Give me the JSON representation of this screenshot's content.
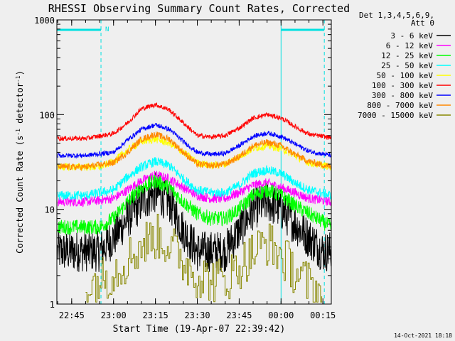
{
  "chart_data": {
    "type": "line",
    "title": "RHESSI Observing Summary Count Rates, Corrected",
    "xlabel": "Start Time (19-Apr-07 22:39:42)",
    "ylabel": "Corrected Count Rate (s⁻¹ detector⁻¹)",
    "y_scale": "log",
    "ylim": [
      1,
      1000
    ],
    "xlim": [
      "22:39:42",
      "00:18:00"
    ],
    "x_ticks": [
      "22:45",
      "23:00",
      "23:15",
      "23:30",
      "23:45",
      "00:00",
      "00:15"
    ],
    "y_ticks": [
      "1",
      "10",
      "100",
      "1000"
    ],
    "legend_header": [
      "Det 1,3,4,5,6,9,",
      "Att 0"
    ],
    "legend_position": "right",
    "footer_date": "14-Oct-2021 18:18",
    "markers": {
      "night_label": "N",
      "night_intervals": [
        [
          "22:39:42",
          "22:55:30"
        ],
        [
          "00:00:00",
          "00:15:30"
        ]
      ],
      "vertical_lines": [
        "22:55:30",
        "00:00:00",
        "00:15:30"
      ]
    },
    "series": [
      {
        "name": "3 - 6 keV",
        "color": "#000000",
        "x": [
          "22:40",
          "22:55",
          "23:00",
          "23:05",
          "23:10",
          "23:15",
          "23:20",
          "23:25",
          "23:30",
          "23:35",
          "23:40",
          "23:45",
          "23:50",
          "23:55",
          "00:00",
          "00:05",
          "00:10",
          "00:15",
          "00:18"
        ],
        "y": [
          3.6,
          3.6,
          5,
          8,
          12,
          15,
          12,
          6,
          3.6,
          3.6,
          3.6,
          6,
          10,
          12,
          10,
          7,
          5,
          3.6,
          3.6
        ]
      },
      {
        "name": "6 - 12 keV",
        "color": "#ff00ff",
        "x": [
          "22:40",
          "22:50",
          "23:00",
          "23:05",
          "23:10",
          "23:15",
          "23:20",
          "23:25",
          "23:30",
          "23:35",
          "23:40",
          "23:45",
          "23:50",
          "23:55",
          "00:00",
          "00:05",
          "00:10",
          "00:18"
        ],
        "y": [
          12,
          12,
          13,
          16,
          20,
          23,
          21,
          17,
          14,
          13,
          13,
          15,
          18,
          19,
          17,
          15,
          13,
          12
        ]
      },
      {
        "name": "12 - 25 keV",
        "color": "#00ff00",
        "x": [
          "22:40",
          "22:55",
          "23:00",
          "23:05",
          "23:10",
          "23:15",
          "23:20",
          "23:25",
          "23:30",
          "23:35",
          "23:40",
          "23:45",
          "23:50",
          "23:55",
          "00:00",
          "00:05",
          "00:10",
          "00:18"
        ],
        "y": [
          6.5,
          6.5,
          8,
          12,
          17,
          20,
          17,
          12,
          9,
          8,
          8,
          10,
          14,
          16,
          14,
          11,
          9,
          6.5
        ]
      },
      {
        "name": "25 - 50 keV",
        "color": "#00ffff",
        "x": [
          "22:40",
          "22:50",
          "23:00",
          "23:05",
          "23:10",
          "23:15",
          "23:20",
          "23:25",
          "23:30",
          "23:35",
          "23:40",
          "23:45",
          "23:50",
          "23:55",
          "00:00",
          "00:05",
          "00:10",
          "00:18"
        ],
        "y": [
          14,
          14,
          16,
          22,
          28,
          32,
          29,
          21,
          16,
          15,
          15,
          18,
          24,
          26,
          24,
          19,
          16,
          14
        ]
      },
      {
        "name": "50 - 100 keV",
        "color": "#ffff00",
        "x": [
          "22:40",
          "22:55",
          "23:00",
          "23:05",
          "23:10",
          "23:15",
          "23:20",
          "23:25",
          "23:30",
          "23:35",
          "23:40",
          "23:45",
          "23:50",
          "23:55",
          "00:00",
          "00:05",
          "00:10",
          "00:18"
        ],
        "y": [
          28,
          28,
          32,
          42,
          52,
          55,
          50,
          40,
          31,
          29,
          30,
          36,
          44,
          47,
          44,
          37,
          31,
          28
        ]
      },
      {
        "name": "100 - 300 keV",
        "color": "#ff0000",
        "x": [
          "22:40",
          "22:50",
          "23:00",
          "23:05",
          "23:10",
          "23:15",
          "23:20",
          "23:25",
          "23:30",
          "23:35",
          "23:40",
          "23:45",
          "23:50",
          "23:55",
          "00:00",
          "00:05",
          "00:10",
          "00:18"
        ],
        "y": [
          56,
          56,
          63,
          82,
          115,
          128,
          112,
          82,
          60,
          58,
          60,
          72,
          92,
          100,
          92,
          75,
          62,
          57
        ]
      },
      {
        "name": "300 - 800 keV",
        "color": "#0000ff",
        "x": [
          "22:40",
          "22:50",
          "23:00",
          "23:05",
          "23:10",
          "23:15",
          "23:20",
          "23:25",
          "23:30",
          "23:35",
          "23:40",
          "23:45",
          "23:50",
          "23:55",
          "00:00",
          "00:05",
          "00:10",
          "00:18"
        ],
        "y": [
          37,
          37,
          40,
          54,
          70,
          78,
          70,
          52,
          40,
          38,
          39,
          47,
          59,
          64,
          59,
          49,
          41,
          37
        ]
      },
      {
        "name": "800 - 7000 keV",
        "color": "#ff8800",
        "x": [
          "22:40",
          "22:50",
          "23:00",
          "23:05",
          "23:10",
          "23:15",
          "23:20",
          "23:25",
          "23:30",
          "23:35",
          "23:40",
          "23:45",
          "23:50",
          "23:55",
          "00:00",
          "00:05",
          "00:10",
          "00:18"
        ],
        "y": [
          28,
          28,
          31,
          40,
          55,
          62,
          55,
          40,
          30,
          29,
          30,
          36,
          47,
          51,
          47,
          38,
          32,
          28
        ]
      },
      {
        "name": "7000 - 15000 keV",
        "color": "#888800",
        "x": [
          "22:50",
          "22:55",
          "23:00",
          "23:05",
          "23:10",
          "23:15",
          "23:20",
          "23:25",
          "23:30",
          "23:35",
          "23:40",
          "23:45",
          "23:50",
          "23:55",
          "00:00",
          "00:05",
          "00:10",
          "00:15"
        ],
        "y": [
          1.5,
          1.8,
          2.2,
          3,
          4.2,
          5.2,
          4.2,
          2.8,
          2,
          1.8,
          1.8,
          2.5,
          3.5,
          4.5,
          3.2,
          2.2,
          1.6,
          1.2
        ]
      }
    ]
  }
}
